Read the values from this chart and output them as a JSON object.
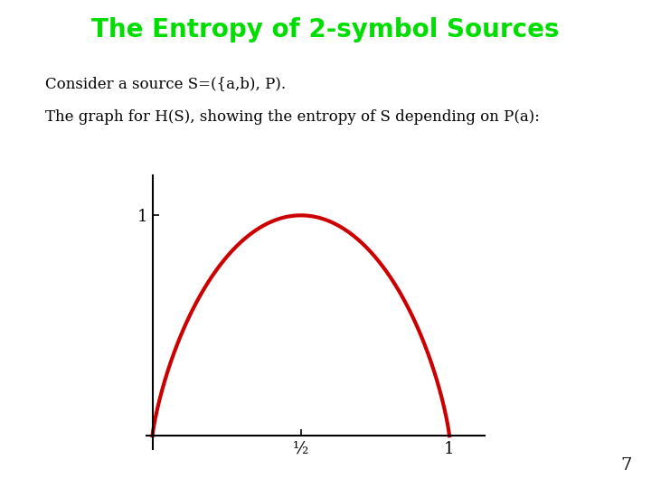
{
  "title": "The Entropy of 2-symbol Sources",
  "title_color": "#00dd00",
  "title_fontsize": 20,
  "line1": "Consider a source S=({a,b), P).",
  "line2": "The graph for H(S), showing the entropy of S depending on P(a):",
  "text_color": "#000000",
  "text_fontsize": 12,
  "curve_color": "#cc0000",
  "curve_linewidth": 3.0,
  "bg_color": "#ffffff",
  "x_tick_labels": [
    "½",
    "1"
  ],
  "x_tick_positions": [
    0.5,
    1.0
  ],
  "y_tick_labels": [
    "1"
  ],
  "y_tick_positions": [
    1.0
  ],
  "slide_number": "7",
  "xlim": [
    -0.02,
    1.12
  ],
  "ylim": [
    -0.06,
    1.18
  ]
}
